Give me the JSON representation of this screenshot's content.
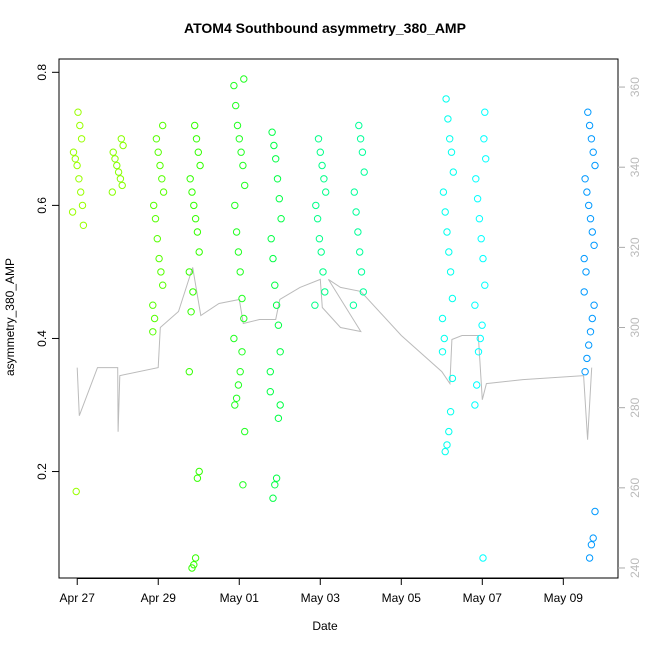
{
  "chart_data": {
    "type": "scatter",
    "title": "ATOM4 Southbound asymmetry_380_AMP",
    "xlabel": "Date",
    "ylabel": "asymmetry_380_AMP",
    "x_ticks": [
      "Apr 27",
      "Apr 29",
      "May 01",
      "May 03",
      "May 05",
      "May 07",
      "May 09"
    ],
    "x_tick_days": [
      0,
      2,
      4,
      6,
      8,
      10,
      12
    ],
    "xlim_days": [
      -0.45,
      13.35
    ],
    "y_ticks": [
      0.2,
      0.4,
      0.6,
      0.8
    ],
    "ylim": [
      0.04,
      0.82
    ],
    "y2_ticks": [
      240,
      260,
      280,
      300,
      320,
      340,
      360
    ],
    "y2lim": [
      237.5,
      367
    ],
    "series": [
      {
        "day": 0.02,
        "color": "#99FF00",
        "values": [
          0.59,
          0.6,
          0.62,
          0.64,
          0.66,
          0.67,
          0.68,
          0.57,
          0.7,
          0.72,
          0.74,
          0.17
        ]
      },
      {
        "day": 1.0,
        "color": "#88FF00",
        "values": [
          0.62,
          0.63,
          0.64,
          0.65,
          0.66,
          0.67,
          0.68,
          0.69,
          0.7
        ]
      },
      {
        "day": 2.0,
        "color": "#55FF00",
        "values": [
          0.45,
          0.48,
          0.5,
          0.52,
          0.55,
          0.58,
          0.6,
          0.62,
          0.64,
          0.66,
          0.68,
          0.7,
          0.43,
          0.41,
          0.72
        ]
      },
      {
        "day": 2.9,
        "color": "#33FF00",
        "values": [
          0.5,
          0.53,
          0.56,
          0.58,
          0.6,
          0.62,
          0.64,
          0.66,
          0.68,
          0.7,
          0.72,
          0.47,
          0.44,
          0.35,
          0.2,
          0.19,
          0.07,
          0.06,
          0.055
        ]
      },
      {
        "day": 4.0,
        "color": "#22FF22",
        "values": [
          0.4,
          0.43,
          0.46,
          0.5,
          0.53,
          0.56,
          0.6,
          0.63,
          0.66,
          0.68,
          0.7,
          0.72,
          0.75,
          0.78,
          0.79,
          0.38,
          0.35,
          0.33,
          0.31,
          0.3,
          0.26,
          0.18
        ]
      },
      {
        "day": 4.9,
        "color": "#00FF44",
        "values": [
          0.35,
          0.38,
          0.42,
          0.45,
          0.48,
          0.52,
          0.55,
          0.58,
          0.61,
          0.64,
          0.67,
          0.69,
          0.71,
          0.32,
          0.3,
          0.28,
          0.19,
          0.18,
          0.16
        ]
      },
      {
        "day": 6.0,
        "color": "#00FF88",
        "values": [
          0.45,
          0.47,
          0.5,
          0.53,
          0.55,
          0.58,
          0.6,
          0.62,
          0.64,
          0.66,
          0.68,
          0.7
        ]
      },
      {
        "day": 6.95,
        "color": "#00FF99",
        "values": [
          0.45,
          0.47,
          0.5,
          0.53,
          0.56,
          0.59,
          0.62,
          0.65,
          0.68,
          0.7,
          0.72
        ]
      },
      {
        "day": 9.15,
        "color": "#00FFEE",
        "values": [
          0.43,
          0.46,
          0.5,
          0.53,
          0.56,
          0.59,
          0.62,
          0.65,
          0.68,
          0.7,
          0.73,
          0.76,
          0.4,
          0.38,
          0.34,
          0.29,
          0.26,
          0.24,
          0.23
        ]
      },
      {
        "day": 9.95,
        "color": "#00FFFF",
        "values": [
          0.45,
          0.48,
          0.52,
          0.55,
          0.58,
          0.61,
          0.64,
          0.67,
          0.7,
          0.42,
          0.4,
          0.38,
          0.33,
          0.3,
          0.74,
          0.07
        ]
      },
      {
        "day": 12.65,
        "color": "#0099FF",
        "values": [
          0.52,
          0.54,
          0.56,
          0.58,
          0.6,
          0.62,
          0.64,
          0.66,
          0.68,
          0.7,
          0.72,
          0.74,
          0.5,
          0.47,
          0.45,
          0.43,
          0.41,
          0.39,
          0.37,
          0.35,
          0.14,
          0.1,
          0.09,
          0.07
        ]
      }
    ],
    "secondary_series": {
      "color": "#BBBBBB",
      "points": [
        [
          0.0,
          290
        ],
        [
          0.05,
          278
        ],
        [
          0.5,
          290
        ],
        [
          1.0,
          290
        ],
        [
          1.01,
          274
        ],
        [
          1.05,
          288
        ],
        [
          2.0,
          290
        ],
        [
          2.05,
          300
        ],
        [
          2.5,
          304
        ],
        [
          2.85,
          315
        ],
        [
          2.9,
          312
        ],
        [
          3.05,
          303
        ],
        [
          3.5,
          306
        ],
        [
          4.0,
          307
        ],
        [
          4.1,
          301
        ],
        [
          4.5,
          302
        ],
        [
          4.9,
          302
        ],
        [
          5.0,
          307
        ],
        [
          5.5,
          310
        ],
        [
          6.0,
          312
        ],
        [
          6.05,
          305
        ],
        [
          6.5,
          300
        ],
        [
          7.0,
          299
        ],
        [
          6.2,
          312
        ],
        [
          6.5,
          310
        ],
        [
          7.0,
          309
        ],
        [
          8.0,
          298
        ],
        [
          9.0,
          289
        ],
        [
          9.2,
          286
        ],
        [
          9.25,
          297
        ],
        [
          9.5,
          298
        ],
        [
          9.9,
          298
        ],
        [
          10.0,
          282
        ],
        [
          10.1,
          286
        ],
        [
          11.0,
          287
        ],
        [
          12.5,
          288
        ],
        [
          12.6,
          272
        ],
        [
          12.7,
          290
        ]
      ]
    }
  }
}
